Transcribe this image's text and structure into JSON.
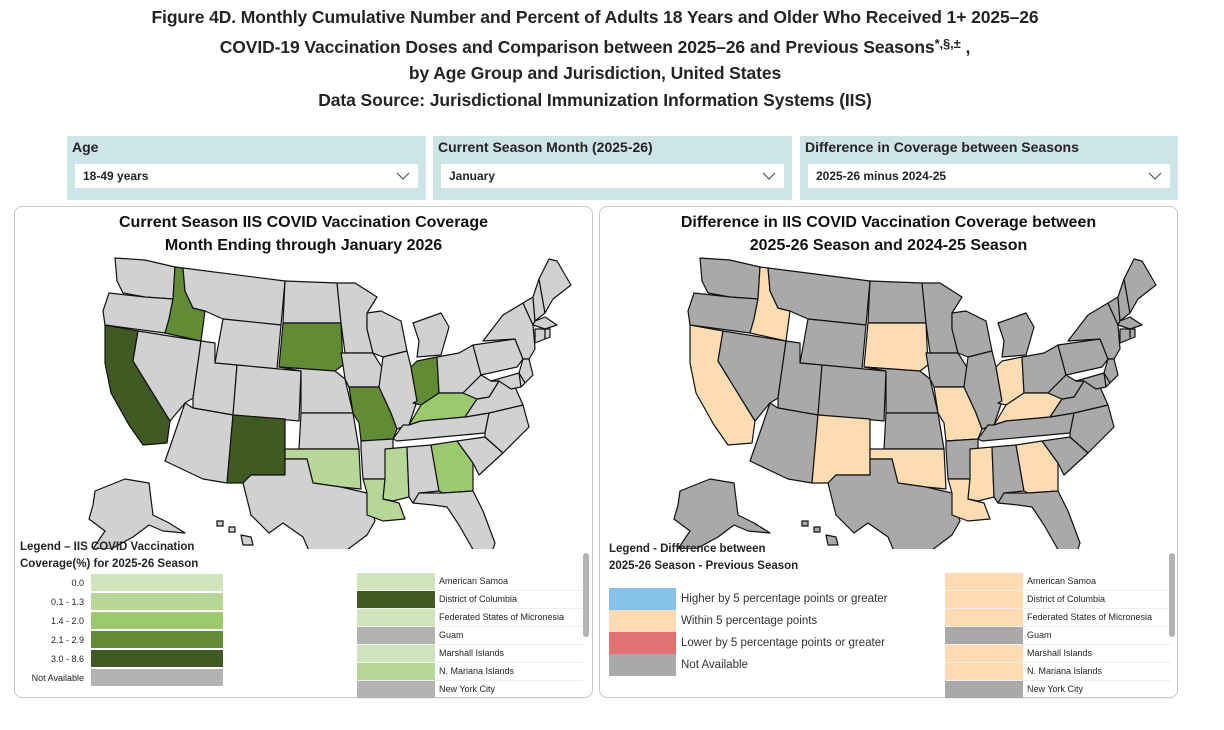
{
  "header": {
    "line1": "Figure 4D. Monthly Cumulative Number and Percent of Adults 18 Years and Older Who Received 1+ 2025–26",
    "line2_a": "COVID-19 Vaccination Doses and Comparison between 2025–26 and Previous Seasons",
    "line2_sup": "*,§,±",
    "line2_b": " ,",
    "line3": "by Age Group and Jurisdiction, United States",
    "line4": "Data Source: Jurisdictional Immunization Information Systems (IIS)"
  },
  "filters": [
    {
      "label": "Age",
      "value": "18-49 years"
    },
    {
      "label": "Current Season Month (2025-26)",
      "value": "January"
    },
    {
      "label": "Difference in Coverage between Seasons",
      "value": "2025-26 minus 2024-25"
    }
  ],
  "colors": {
    "cov_0": "#d0e4bc",
    "cov_1": "#b6d797",
    "cov_2": "#9dc96e",
    "cov_3": "#628b36",
    "cov_4": "#3f5a23",
    "na": "#b3b3b3",
    "state_na": "#d1d1d1",
    "diff_higher": "#86c1e7",
    "diff_within": "#fddcb2",
    "diff_lower": "#e37373",
    "diff_na": "#a9a9a9",
    "panel": "#cde4e8"
  },
  "chart_data": [
    {
      "type": "choropleth",
      "title_line1": "Current Season IIS COVID Vaccination Coverage",
      "title_line2": "Month Ending through January 2026",
      "legend_title_1": "Legend – IIS COVID Vaccination",
      "legend_title_2": "Coverage(%) for 2025-26 Season",
      "legend": [
        {
          "label": "0.0",
          "key": "cov_0"
        },
        {
          "label": "0.1 - 1.3",
          "key": "cov_1"
        },
        {
          "label": "1.4 - 2.0",
          "key": "cov_2"
        },
        {
          "label": "2.1 - 2.9",
          "key": "cov_3"
        },
        {
          "label": "3.0 - 8.6",
          "key": "cov_4"
        },
        {
          "label": "Not Available",
          "key": "na"
        }
      ],
      "states": {
        "CA": "cov_4",
        "NM": "cov_4",
        "ID": "cov_3",
        "SD": "cov_3",
        "MO": "cov_3",
        "IN": "cov_3",
        "KY": "cov_2",
        "GA": "cov_2",
        "OK": "cov_1",
        "MS": "cov_1",
        "LA": "cov_1"
      },
      "territories": [
        {
          "name": "American Samoa",
          "key": "cov_0"
        },
        {
          "name": "District of Columbia",
          "key": "cov_4"
        },
        {
          "name": "Federated States of Micronesia",
          "key": "cov_0"
        },
        {
          "name": "Guam",
          "key": "na"
        },
        {
          "name": "Marshall Islands",
          "key": "cov_0"
        },
        {
          "name": "N. Mariana Islands",
          "key": "cov_1"
        },
        {
          "name": "New York City",
          "key": "na"
        }
      ]
    },
    {
      "type": "choropleth",
      "title_line1": "Difference in IIS COVID Vaccination Coverage between",
      "title_line2": "2025-26  Season and  2024-25 Season",
      "legend_title_1": "Legend - Difference between",
      "legend_title_2": "2025-26 Season - Previous Season",
      "legend": [
        {
          "label": "Higher by 5 percentage points or greater",
          "key": "diff_higher"
        },
        {
          "label": "Within 5 percentage points",
          "key": "diff_within"
        },
        {
          "label": "Lower by 5 percentage points or greater",
          "key": "diff_lower"
        },
        {
          "label": "Not Available",
          "key": "diff_na"
        }
      ],
      "states": {
        "CA": "diff_within",
        "NM": "diff_within",
        "ID": "diff_within",
        "SD": "diff_within",
        "MO": "diff_within",
        "IN": "diff_within",
        "KY": "diff_within",
        "GA": "diff_within",
        "OK": "diff_within",
        "MS": "diff_within",
        "LA": "diff_within"
      },
      "territories": [
        {
          "name": "American Samoa",
          "key": "diff_within"
        },
        {
          "name": "District of Columbia",
          "key": "diff_within"
        },
        {
          "name": "Federated States of Micronesia",
          "key": "diff_within"
        },
        {
          "name": "Guam",
          "key": "diff_na"
        },
        {
          "name": "Marshall Islands",
          "key": "diff_within"
        },
        {
          "name": "N. Mariana Islands",
          "key": "diff_within"
        },
        {
          "name": "New York City",
          "key": "diff_na"
        }
      ]
    }
  ]
}
